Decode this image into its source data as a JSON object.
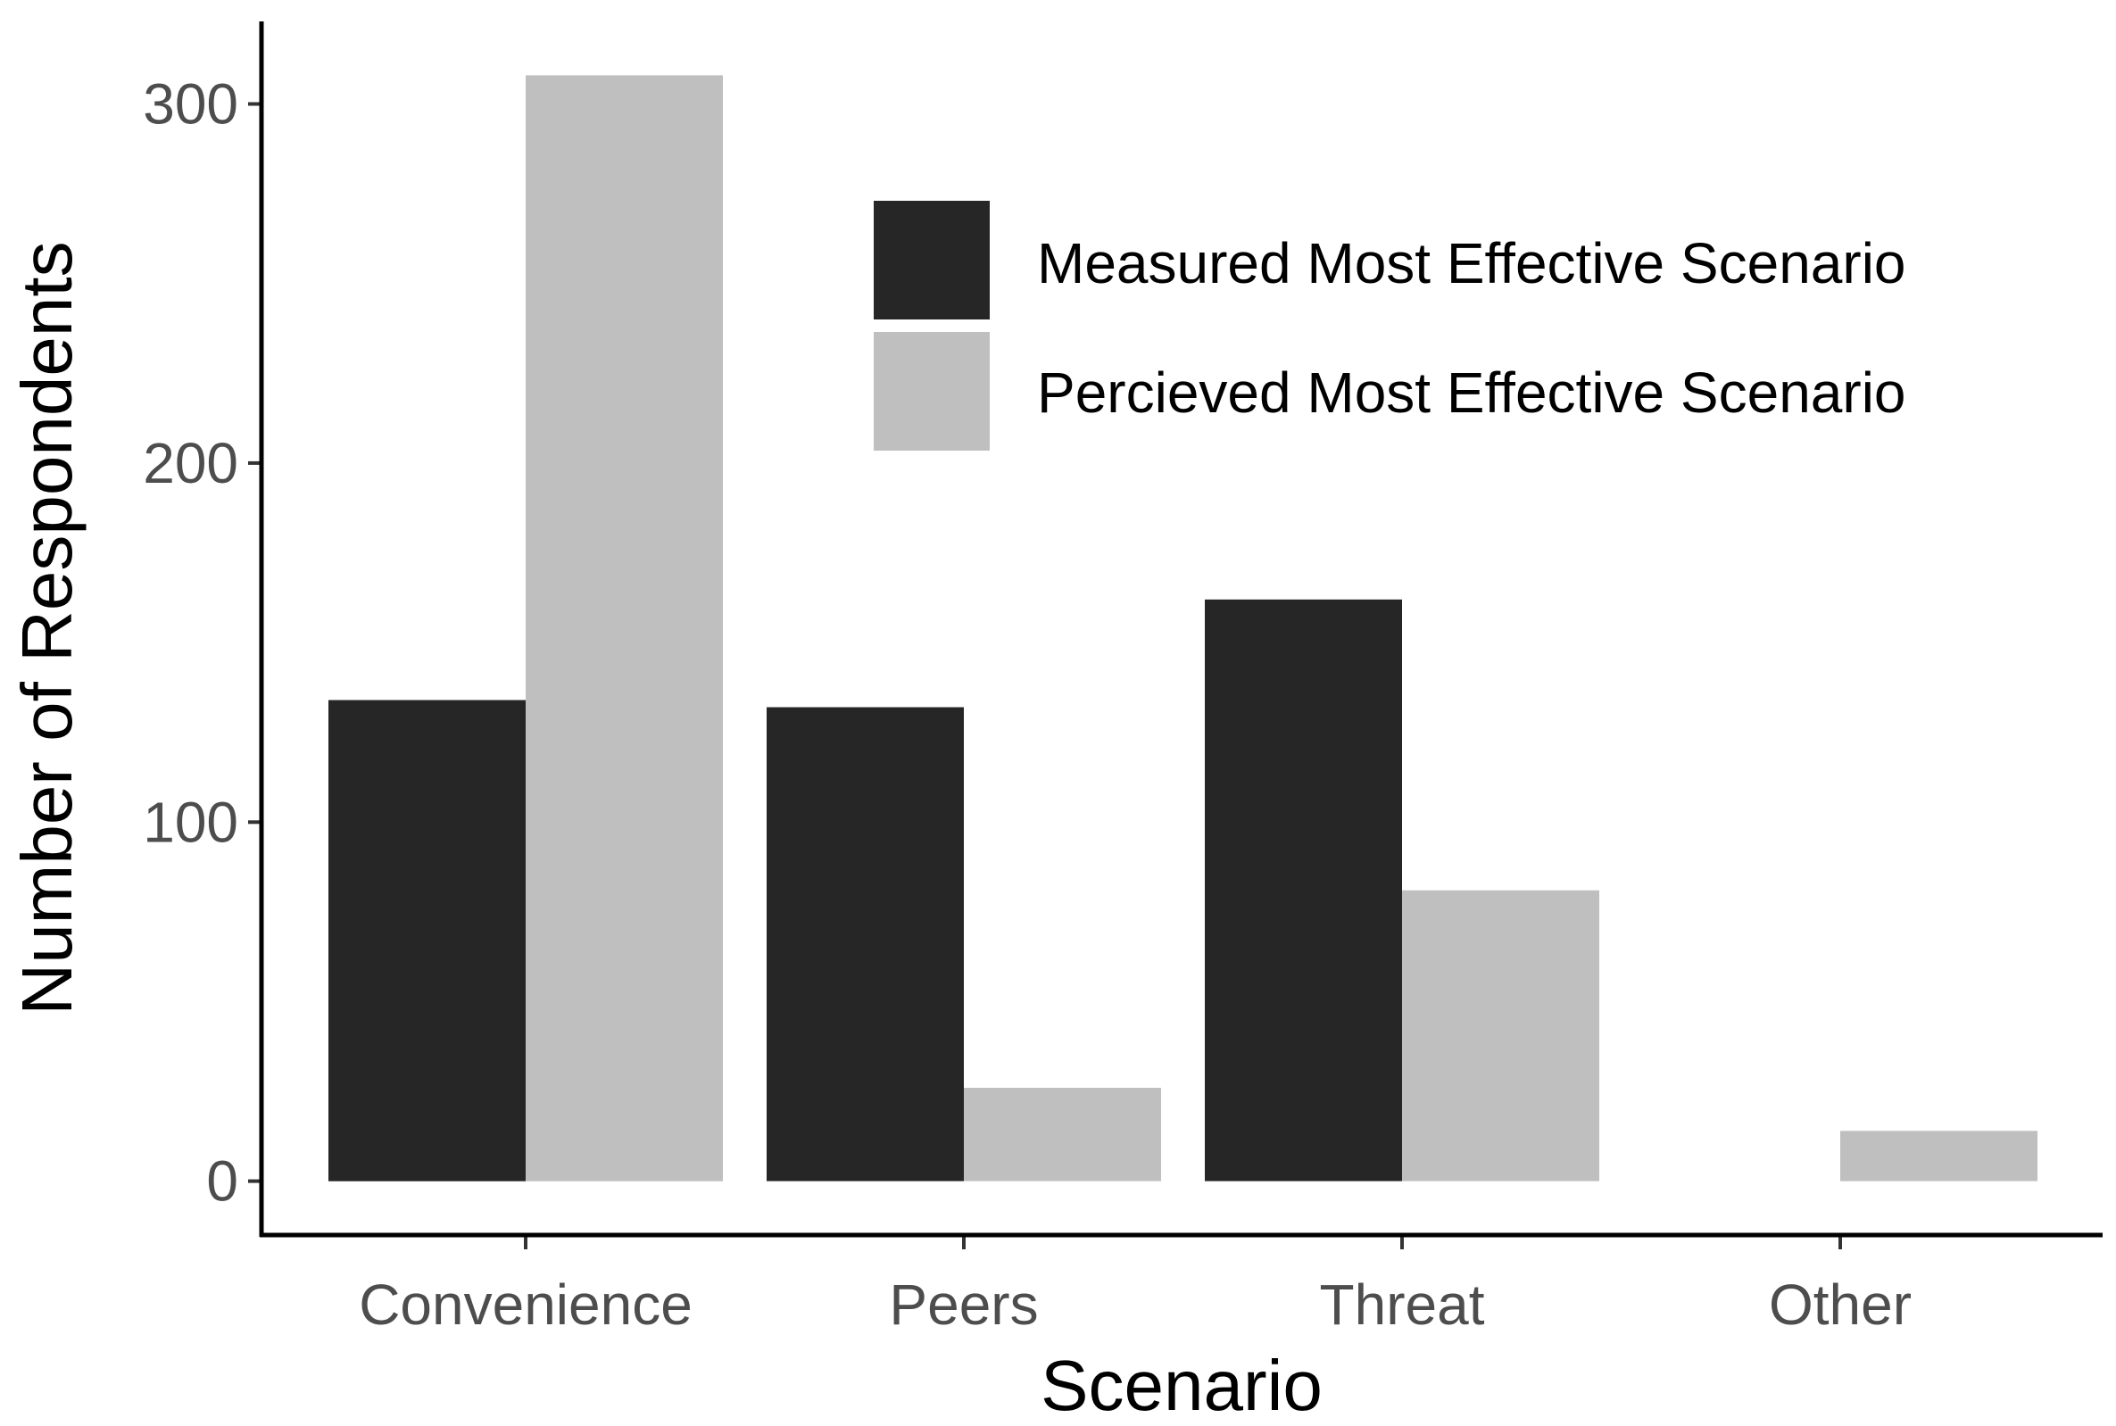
{
  "chart_data": {
    "type": "bar",
    "title": "",
    "xlabel": "Scenario",
    "ylabel": "Number of Respondents",
    "categories": [
      "Convenience",
      "Peers",
      "Threat",
      "Other"
    ],
    "series": [
      {
        "name": "Measured Most Effective Scenario",
        "color": "#262626",
        "values": [
          134,
          132,
          162,
          0
        ]
      },
      {
        "name": "Percieved Most Effective Scenario",
        "color": "#bfbfbf",
        "values": [
          308,
          26,
          81,
          14
        ]
      }
    ],
    "ylim": [
      -15,
      323
    ],
    "yticks": [
      0,
      100,
      200,
      300
    ],
    "grid": false,
    "legend_position": "top-right (inside plot)"
  }
}
